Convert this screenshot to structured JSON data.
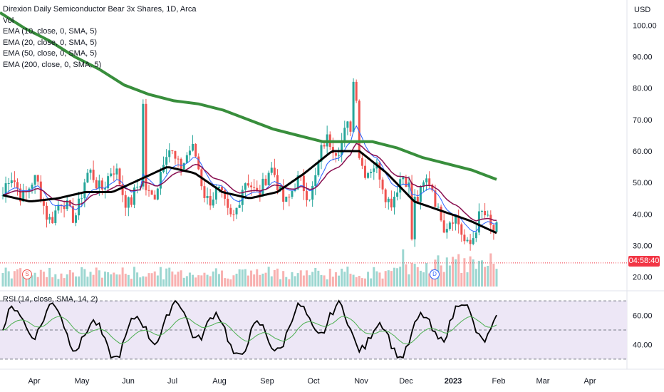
{
  "header": {
    "title": "Direxion Daily Semiconductor Bear 3x Shares, 1D, Arca",
    "currency": "USD",
    "vol_label": "Vol",
    "studies": [
      "EMA (10, close, 0, SMA, 5)",
      "EMA (20, close, 0, SMA, 5)",
      "EMA (50, close, 0, SMA, 5)",
      "EMA (200, close, 0, SMA, 5)"
    ],
    "rsi_label": "RSI (14, close, SMA, 14, 2)",
    "countdown": "04:58:40",
    "markers": {
      "split": "S",
      "dividend": "D"
    }
  },
  "colors": {
    "up": "#26a69a",
    "down": "#ef5350",
    "ema10": "#2962ff",
    "ema20": "#880e4f",
    "ema50": "#000000",
    "ema200": "#388e3c",
    "rsi": "#000000",
    "rsi_ma": "#4caf50",
    "rsi_band": "#ede7f6"
  },
  "chart_data": [
    {
      "type": "candlestick",
      "x_ticks": [
        "Apr",
        "May",
        "Jun",
        "Jul",
        "Aug",
        "Sep",
        "Oct",
        "Nov",
        "Dec",
        "2023",
        "Feb",
        "Mar",
        "Apr"
      ],
      "y_ticks": [
        20,
        30,
        40,
        50,
        60,
        70,
        80,
        90,
        100
      ],
      "ylim": [
        17,
        108
      ],
      "last_price": 24.5,
      "ema200": [
        104,
        99,
        95,
        90,
        86,
        81,
        78,
        76,
        75,
        73,
        70,
        67,
        65,
        63,
        63,
        63,
        61,
        58,
        56,
        54,
        51
      ],
      "ema50": [
        46,
        44,
        45,
        47,
        47,
        51,
        55,
        53,
        47,
        45,
        47,
        53,
        60,
        60,
        53,
        44,
        41,
        38,
        34
      ]
    },
    {
      "type": "line",
      "title": "RSI",
      "y_ticks": [
        40,
        60
      ],
      "ylim": [
        28,
        72
      ],
      "band": [
        30,
        70
      ],
      "midline": 50
    }
  ]
}
